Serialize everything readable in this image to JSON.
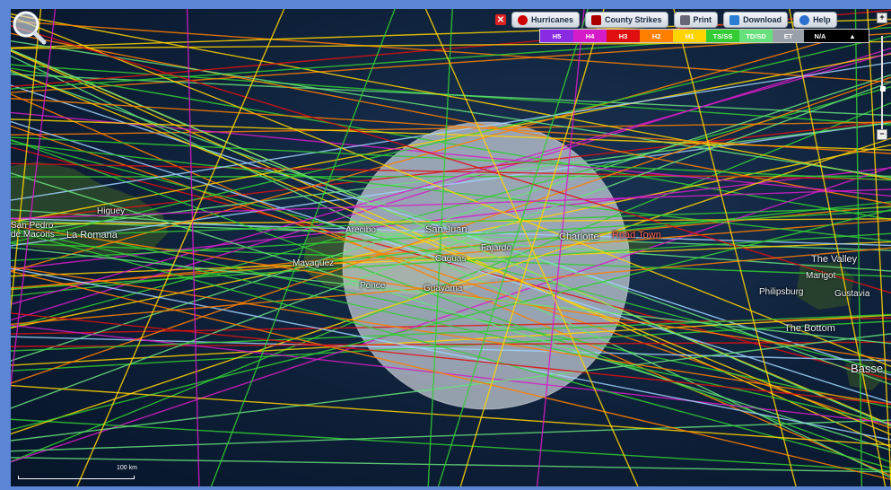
{
  "toolbar": {
    "close_label": "✕",
    "hurricanes_label": "Hurricanes",
    "county_strikes_label": "County Strikes",
    "print_label": "Print",
    "download_label": "Download",
    "help_label": "Help"
  },
  "legend": [
    {
      "label": "H5",
      "color": "#8a2be2"
    },
    {
      "label": "H4",
      "color": "#d61cc8"
    },
    {
      "label": "H3",
      "color": "#e01010"
    },
    {
      "label": "H2",
      "color": "#ff7f00"
    },
    {
      "label": "H1",
      "color": "#ffd400"
    },
    {
      "label": "TS/SS",
      "color": "#33cc33"
    },
    {
      "label": "TD/SD",
      "color": "#66e07a"
    },
    {
      "label": "ET",
      "color": "#9aa0a8"
    },
    {
      "label": "N/A",
      "color": "#000000"
    },
    {
      "label": "▲",
      "color": "#000000"
    }
  ],
  "map_labels": {
    "higuey": "Higuey",
    "san_pedro": "San Pedro",
    "de_macoris": "de Macoris",
    "la_romana": "La Romana",
    "arecibo": "Arecibo",
    "san_juan": "San Juan",
    "mayaguez": "Mayaguez",
    "caguas": "Caguas",
    "fajardo": "Fajardo",
    "ponce": "Ponce",
    "guayama": "Guayama",
    "charlotte": "Charlotte",
    "road_town": "Road Town",
    "the_valley": "The Valley",
    "philipsburg": "Philipsburg",
    "gustavia": "Gustavia",
    "the_bottom": "The Bottom",
    "basse": "Basse",
    "marigot": "Marigot"
  },
  "zoom": {
    "plus": "+",
    "minus": "−"
  },
  "scale_label": "100 km"
}
